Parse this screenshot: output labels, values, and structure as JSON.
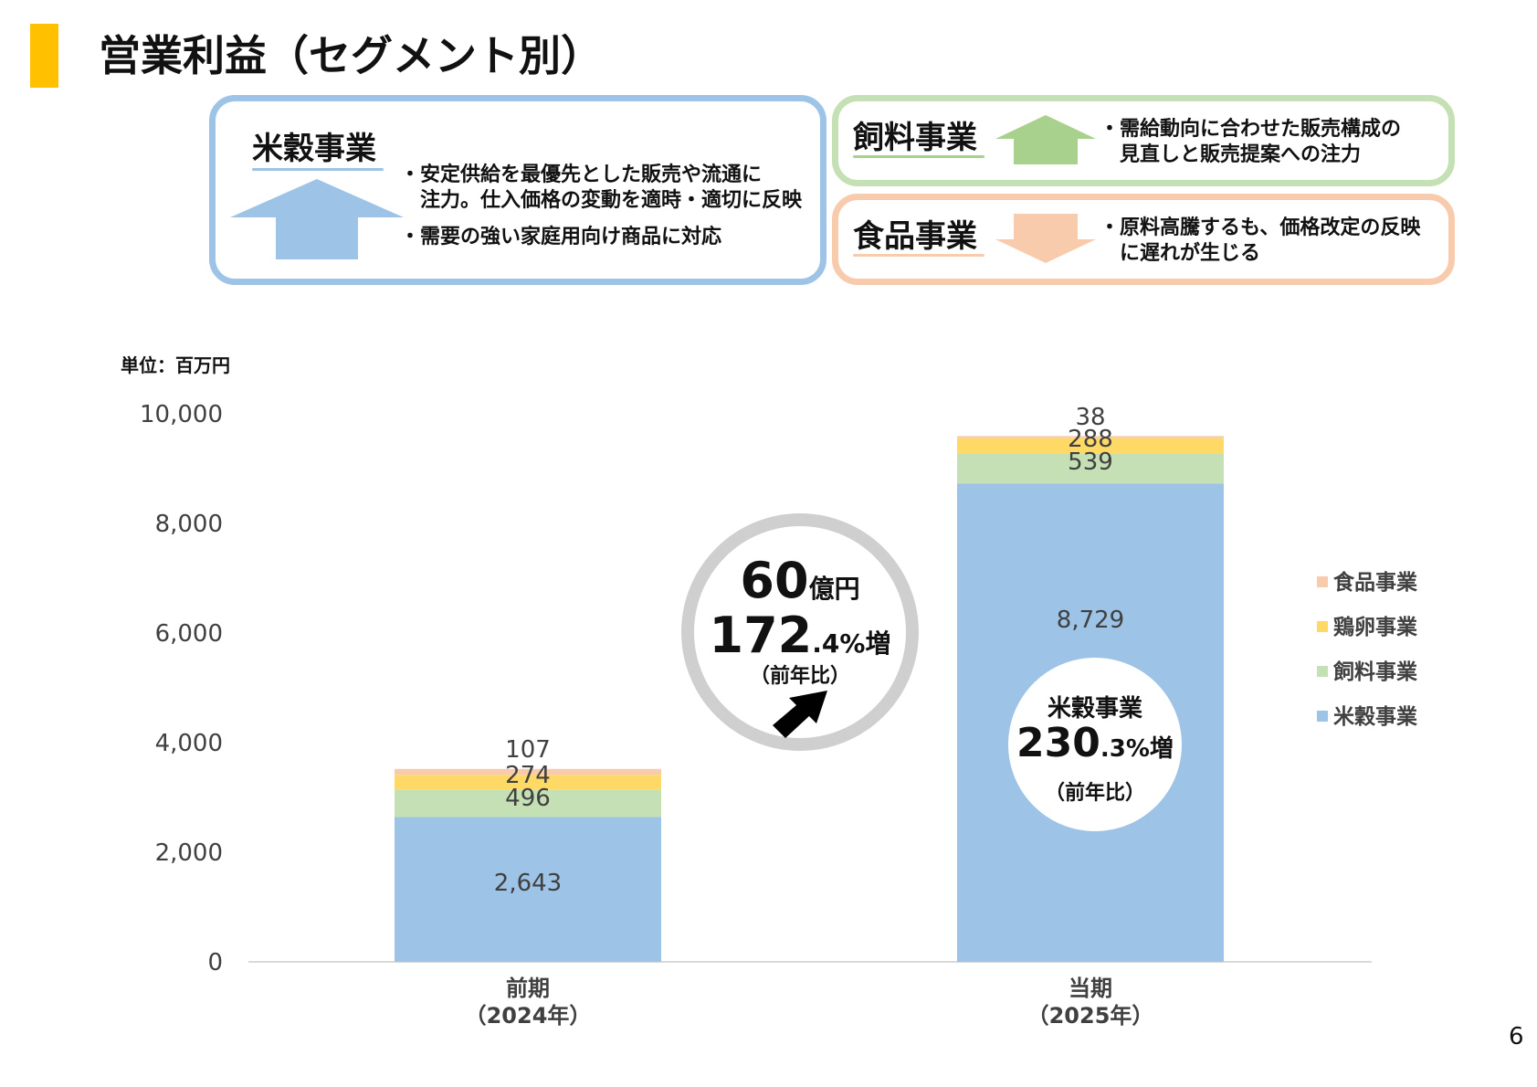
{
  "title": "営業利益（セグメント別）",
  "unit_label": "単位：百万円",
  "page_number": "6",
  "colors": {
    "accent": "#ffc000",
    "rice": "#9dc3e6",
    "feed": "#c5e0b4",
    "egg": "#ffd966",
    "food": "#f8cbad"
  },
  "panels": {
    "rice": {
      "name": "米穀事業",
      "direction": "up",
      "bullets": [
        "・安定供給を最優先とした販売や流通に",
        "　注力。仕入価格の変動を適時・適切に反映",
        "・需要の強い家庭用向け商品に対応"
      ]
    },
    "feed": {
      "name": "飼料事業",
      "direction": "up",
      "bullets": [
        "・需給動向に合わせた販売構成の",
        "　見直しと販売提案への注力"
      ]
    },
    "food": {
      "name": "食品事業",
      "direction": "down",
      "bullets": [
        "・原料高騰するも、価格改定の反映",
        "　に遅れが生じる"
      ]
    }
  },
  "badge": {
    "amount_num": "60",
    "amount_unit": "億円",
    "pct_num": "172",
    "pct_dec": ".4%増",
    "yoy": "（前年比）",
    "arrow_icon": "arrow-up-right-icon"
  },
  "rice_badge": {
    "name": "米穀事業",
    "pct_num": "230",
    "pct_dec": ".3%増",
    "yoy": "（前年比）"
  },
  "chart_data": {
    "type": "bar",
    "stacked": true,
    "categories": [
      [
        "前期",
        "（2024年）"
      ],
      [
        "当期",
        "（2025年）"
      ]
    ],
    "series": [
      {
        "name": "米穀事業",
        "values": [
          2643,
          8729
        ],
        "labels": [
          "2,643",
          "8,729"
        ]
      },
      {
        "name": "飼料事業",
        "values": [
          496,
          539
        ],
        "labels": [
          "496",
          "539"
        ]
      },
      {
        "name": "鶏卵事業",
        "values": [
          274,
          288
        ],
        "labels": [
          "274",
          "288"
        ]
      },
      {
        "name": "食品事業",
        "values": [
          107,
          38
        ],
        "labels": [
          "107",
          "38"
        ]
      }
    ],
    "yticks": [
      "0",
      "2,000",
      "4,000",
      "6,000",
      "8,000",
      "10,000"
    ],
    "ylim": [
      0,
      10000
    ],
    "legend_order": [
      "食品事業",
      "鶏卵事業",
      "飼料事業",
      "米穀事業"
    ],
    "legend_position": "right",
    "grid": false
  }
}
